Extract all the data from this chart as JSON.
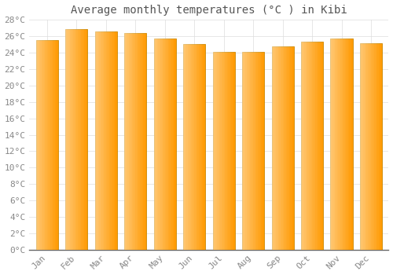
{
  "title": "Average monthly temperatures (°C ) in Kibi",
  "months": [
    "Jan",
    "Feb",
    "Mar",
    "Apr",
    "May",
    "Jun",
    "Jul",
    "Aug",
    "Sep",
    "Oct",
    "Nov",
    "Dec"
  ],
  "values": [
    25.5,
    26.8,
    26.6,
    26.4,
    25.7,
    25.0,
    24.1,
    24.1,
    24.7,
    25.3,
    25.7,
    25.1
  ],
  "bar_color_left": "#FFCC44",
  "bar_color_right": "#FF9900",
  "bar_edge_color": "#CC8800",
  "background_color": "#FFFFFF",
  "grid_color": "#DDDDDD",
  "ylim": [
    0,
    28
  ],
  "ytick_step": 2,
  "title_fontsize": 10,
  "tick_fontsize": 8,
  "font_family": "monospace"
}
